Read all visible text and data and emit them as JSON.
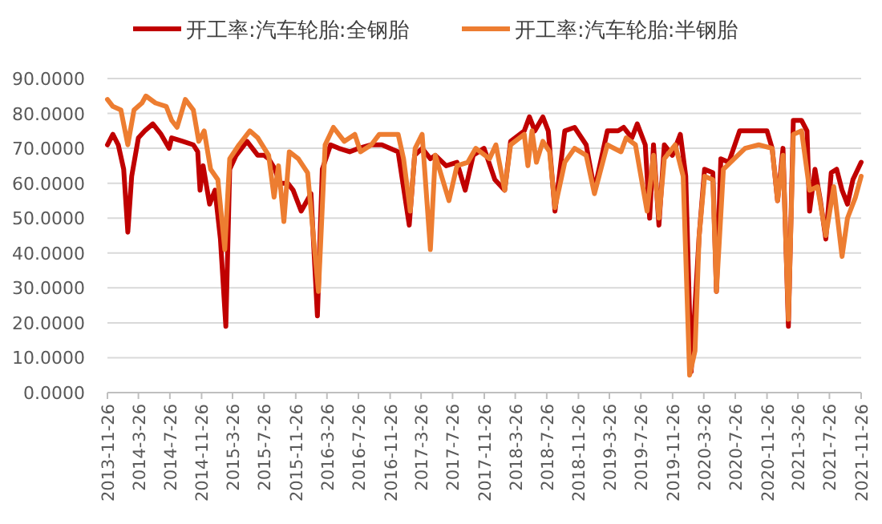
{
  "chart_data": {
    "type": "line",
    "legend": "top",
    "grid": "y",
    "line_style": "solid",
    "marker": "none",
    "xlim": [
      "2013-11-26",
      "2021-11-26"
    ],
    "xticks": [
      {
        "value": "2013-11-26",
        "label": "2013-11-26"
      },
      {
        "value": "2014-03-26",
        "label": "2014-3-26"
      },
      {
        "value": "2014-07-26",
        "label": "2014-7-26"
      },
      {
        "value": "2014-11-26",
        "label": "2014-11-26"
      },
      {
        "value": "2015-03-26",
        "label": "2015-3-26"
      },
      {
        "value": "2015-07-26",
        "label": "2015-7-26"
      },
      {
        "value": "2015-11-26",
        "label": "2015-11-26"
      },
      {
        "value": "2016-03-26",
        "label": "2016-3-26"
      },
      {
        "value": "2016-07-26",
        "label": "2016-7-26"
      },
      {
        "value": "2016-11-26",
        "label": "2016-11-26"
      },
      {
        "value": "2017-03-26",
        "label": "2017-3-26"
      },
      {
        "value": "2017-07-26",
        "label": "2017-7-26"
      },
      {
        "value": "2017-11-26",
        "label": "2017-11-26"
      },
      {
        "value": "2018-03-26",
        "label": "2018-3-26"
      },
      {
        "value": "2018-07-26",
        "label": "2018-7-26"
      },
      {
        "value": "2018-11-26",
        "label": "2018-11-26"
      },
      {
        "value": "2019-03-26",
        "label": "2019-3-26"
      },
      {
        "value": "2019-07-26",
        "label": "2019-7-26"
      },
      {
        "value": "2019-11-26",
        "label": "2019-11-26"
      },
      {
        "value": "2020-03-26",
        "label": "2020-3-26"
      },
      {
        "value": "2020-07-26",
        "label": "2020-7-26"
      },
      {
        "value": "2020-11-26",
        "label": "2020-11-26"
      },
      {
        "value": "2021-03-26",
        "label": "2021-3-26"
      },
      {
        "value": "2021-07-26",
        "label": "2021-7-26"
      },
      {
        "value": "2021-11-26",
        "label": "2021-11-26"
      }
    ],
    "ylim": [
      0,
      90
    ],
    "yticks": [
      {
        "value": 0,
        "label": "0.0000"
      },
      {
        "value": 10,
        "label": "10.0000"
      },
      {
        "value": 20,
        "label": "20.0000"
      },
      {
        "value": 30,
        "label": "30.0000"
      },
      {
        "value": 40,
        "label": "40.0000"
      },
      {
        "value": 50,
        "label": "50.0000"
      },
      {
        "value": 60,
        "label": "60.0000"
      },
      {
        "value": 70,
        "label": "70.0000"
      },
      {
        "value": 80,
        "label": "80.0000"
      },
      {
        "value": 90,
        "label": "90.0000"
      }
    ],
    "series": [
      {
        "name": "开工率:汽车轮胎:全钢胎",
        "color": "#c00000",
        "x": [
          "2013-11-26",
          "2013-12-17",
          "2014-01-07",
          "2014-01-28",
          "2014-02-13",
          "2014-02-28",
          "2014-03-26",
          "2014-04-20",
          "2014-05-21",
          "2014-06-22",
          "2014-07-23",
          "2014-08-02",
          "2014-09-14",
          "2014-10-25",
          "2014-11-11",
          "2014-11-20",
          "2014-12-02",
          "2014-12-27",
          "2015-01-17",
          "2015-02-07",
          "2015-02-28",
          "2015-03-15",
          "2015-04-09",
          "2015-05-21",
          "2015-07-02",
          "2015-07-27",
          "2015-08-13",
          "2015-09-07",
          "2015-09-24",
          "2015-10-26",
          "2015-11-16",
          "2015-12-17",
          "2016-01-24",
          "2016-02-18",
          "2016-03-08",
          "2016-04-09",
          "2016-05-11",
          "2016-06-22",
          "2016-07-27",
          "2016-09-14",
          "2016-10-25",
          "2016-12-27",
          "2017-02-08",
          "2017-03-01",
          "2017-03-30",
          "2017-05-01",
          "2017-05-20",
          "2017-07-01",
          "2017-08-12",
          "2017-09-13",
          "2017-10-14",
          "2017-11-25",
          "2018-01-06",
          "2018-02-13",
          "2018-03-08",
          "2018-04-30",
          "2018-05-20",
          "2018-06-10",
          "2018-07-11",
          "2018-08-01",
          "2018-08-27",
          "2018-10-04",
          "2018-11-11",
          "2018-12-26",
          "2019-01-27",
          "2019-03-18",
          "2019-04-29",
          "2019-05-20",
          "2019-06-21",
          "2019-07-12",
          "2019-08-12",
          "2019-08-29",
          "2019-09-13",
          "2019-10-04",
          "2019-10-25",
          "2019-11-25",
          "2019-12-26",
          "2020-01-16",
          "2020-02-06",
          "2020-03-08",
          "2020-03-29",
          "2020-04-30",
          "2020-05-14",
          "2020-05-31",
          "2020-07-01",
          "2020-08-12",
          "2020-10-04",
          "2020-10-25",
          "2020-11-26",
          "2020-12-16",
          "2021-01-06",
          "2021-01-27",
          "2021-02-17",
          "2021-03-08",
          "2021-04-09",
          "2021-04-30",
          "2021-05-10",
          "2021-05-31",
          "2021-06-21",
          "2021-07-12",
          "2021-08-02",
          "2021-08-23",
          "2021-09-13",
          "2021-10-04",
          "2021-10-25",
          "2021-11-26"
        ],
        "values": [
          71,
          74,
          71,
          64,
          46,
          62,
          73,
          75,
          77,
          74,
          70,
          73,
          72,
          71,
          69,
          58,
          65,
          54,
          58,
          44,
          19,
          64,
          68,
          72,
          68,
          68,
          67,
          64,
          60,
          60,
          58,
          52,
          57,
          22,
          64,
          71,
          70,
          69,
          70,
          71,
          71,
          69,
          48,
          68,
          70,
          67,
          68,
          65,
          66,
          58,
          68,
          70,
          61,
          58,
          72,
          75,
          79,
          75,
          79,
          75,
          52,
          75,
          76,
          71,
          58,
          75,
          75,
          76,
          73,
          77,
          71,
          50,
          71,
          48,
          71,
          68,
          74,
          62,
          6,
          45,
          64,
          63,
          29,
          67,
          66,
          75,
          75,
          75,
          75,
          70,
          55,
          70,
          19,
          78,
          78,
          75,
          52,
          64,
          55,
          44,
          63,
          64,
          58,
          54,
          61,
          66
        ]
      },
      {
        "name": "开工率:汽车轮胎:半钢胎",
        "color": "#ed7d31",
        "x": [
          "2013-11-26",
          "2013-12-17",
          "2014-01-17",
          "2014-02-13",
          "2014-03-09",
          "2014-04-09",
          "2014-04-24",
          "2014-05-31",
          "2014-07-12",
          "2014-08-02",
          "2014-08-23",
          "2014-09-24",
          "2014-10-25",
          "2014-11-15",
          "2014-12-06",
          "2014-12-31",
          "2015-01-28",
          "2015-02-24",
          "2015-03-15",
          "2015-04-20",
          "2015-06-01",
          "2015-07-02",
          "2015-08-13",
          "2015-09-03",
          "2015-09-20",
          "2015-10-11",
          "2015-11-01",
          "2015-12-06",
          "2016-01-11",
          "2016-02-22",
          "2016-03-19",
          "2016-04-20",
          "2016-06-01",
          "2016-07-12",
          "2016-08-03",
          "2016-09-14",
          "2016-10-15",
          "2016-11-16",
          "2016-12-27",
          "2017-01-17",
          "2017-02-12",
          "2017-03-03",
          "2017-03-30",
          "2017-05-01",
          "2017-05-20",
          "2017-07-12",
          "2017-08-12",
          "2017-09-23",
          "2017-10-24",
          "2017-12-16",
          "2018-01-10",
          "2018-02-13",
          "2018-03-08",
          "2018-04-30",
          "2018-05-14",
          "2018-05-30",
          "2018-06-16",
          "2018-07-11",
          "2018-08-06",
          "2018-08-27",
          "2018-10-04",
          "2018-11-11",
          "2018-12-26",
          "2019-01-27",
          "2019-03-18",
          "2019-05-10",
          "2019-05-30",
          "2019-07-05",
          "2019-08-19",
          "2019-09-13",
          "2019-10-04",
          "2019-10-25",
          "2019-12-06",
          "2020-01-06",
          "2020-01-31",
          "2020-02-21",
          "2020-03-08",
          "2020-03-29",
          "2020-04-30",
          "2020-05-14",
          "2020-06-10",
          "2020-07-22",
          "2020-09-02",
          "2020-10-25",
          "2020-12-16",
          "2021-01-06",
          "2021-01-27",
          "2021-02-17",
          "2021-03-08",
          "2021-04-09",
          "2021-05-10",
          "2021-06-10",
          "2021-07-12",
          "2021-08-12",
          "2021-09-13",
          "2021-10-04",
          "2021-11-04",
          "2021-11-26"
        ],
        "values": [
          84,
          82,
          81,
          71,
          81,
          83,
          85,
          83,
          82,
          78,
          76,
          84,
          81,
          72,
          75,
          64,
          61,
          41,
          67,
          71,
          75,
          73,
          68,
          56,
          65,
          49,
          69,
          67,
          63,
          29,
          71,
          76,
          72,
          74,
          69,
          71,
          74,
          74,
          74,
          67,
          52,
          70,
          74,
          41,
          68,
          55,
          65,
          66,
          70,
          67,
          71,
          58,
          71,
          74,
          65,
          75,
          66,
          72,
          69,
          53,
          66,
          70,
          68,
          57,
          71,
          69,
          73,
          71,
          52,
          68,
          50,
          67,
          71,
          62,
          5,
          12,
          45,
          62,
          61,
          29,
          64,
          67,
          70,
          71,
          70,
          55,
          68,
          21,
          74,
          75,
          58,
          59,
          45,
          59,
          39,
          50,
          56,
          62
        ]
      }
    ]
  }
}
